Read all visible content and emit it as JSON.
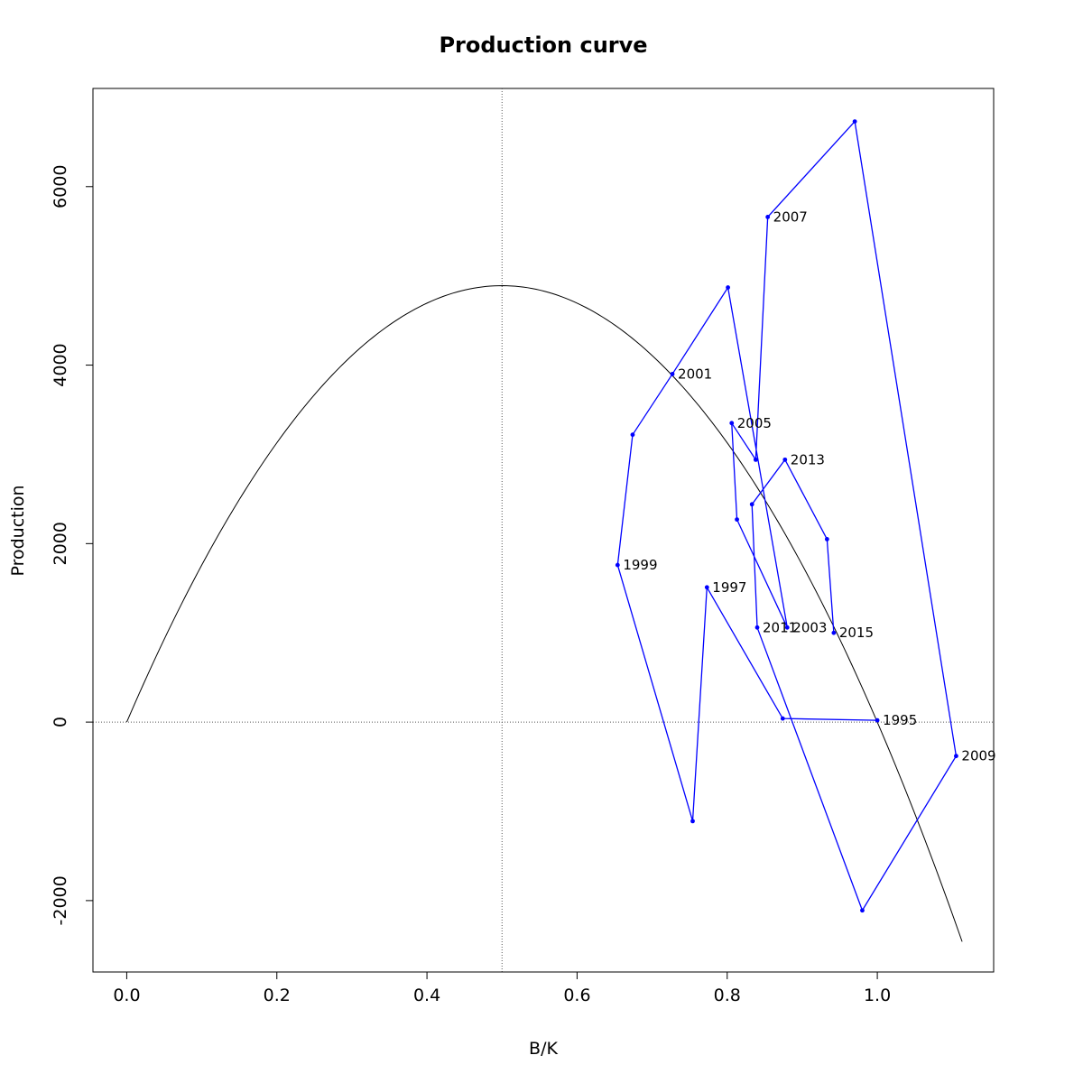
{
  "chart_data": {
    "type": "line",
    "title": "Production curve",
    "xlabel": "B/K",
    "ylabel": "Production",
    "xlim": [
      -0.045,
      1.155
    ],
    "ylim": [
      -2800,
      7100
    ],
    "x_ticks": [
      0.0,
      0.2,
      0.4,
      0.6,
      0.8,
      1.0
    ],
    "x_tick_labels": [
      "0.0",
      "0.2",
      "0.4",
      "0.6",
      "0.8",
      "1.0"
    ],
    "y_ticks": [
      -2000,
      0,
      2000,
      4000,
      6000
    ],
    "y_tick_labels": [
      "-2000",
      "0",
      "2000",
      "4000",
      "6000"
    ],
    "reference_lines": {
      "vertical_x": 0.5,
      "horizontal_y": 0
    },
    "curve": {
      "description": "Surplus production model P = 4r*MSY*(B/K)*(1-B/K)",
      "msy": 4890,
      "x_range": [
        0.0,
        1.113
      ],
      "color": "#000000"
    },
    "series": [
      {
        "color": "#0000ff",
        "points": [
          {
            "x": 1.0,
            "y": 20,
            "label": "1995"
          },
          {
            "x": 0.874,
            "y": 40,
            "label": ""
          },
          {
            "x": 0.773,
            "y": 1510,
            "label": "1997"
          },
          {
            "x": 0.754,
            "y": -1110,
            "label": ""
          },
          {
            "x": 0.654,
            "y": 1760,
            "label": "1999"
          },
          {
            "x": 0.674,
            "y": 3220,
            "label": ""
          },
          {
            "x": 0.727,
            "y": 3900,
            "label": "2001"
          },
          {
            "x": 0.801,
            "y": 4870,
            "label": ""
          },
          {
            "x": 0.88,
            "y": 1060,
            "label": "2003"
          },
          {
            "x": 0.813,
            "y": 2270,
            "label": ""
          },
          {
            "x": 0.806,
            "y": 3350,
            "label": "2005"
          },
          {
            "x": 0.838,
            "y": 2940,
            "label": ""
          },
          {
            "x": 0.854,
            "y": 5660,
            "label": "2007"
          },
          {
            "x": 0.97,
            "y": 6730,
            "label": ""
          },
          {
            "x": 1.105,
            "y": -380,
            "label": "2009"
          },
          {
            "x": 0.98,
            "y": -2110,
            "label": ""
          },
          {
            "x": 0.84,
            "y": 1060,
            "label": "2011"
          },
          {
            "x": 0.833,
            "y": 2440,
            "label": ""
          },
          {
            "x": 0.877,
            "y": 2940,
            "label": "2013"
          },
          {
            "x": 0.933,
            "y": 2050,
            "label": ""
          },
          {
            "x": 0.942,
            "y": 1000,
            "label": "2015"
          }
        ]
      }
    ]
  }
}
